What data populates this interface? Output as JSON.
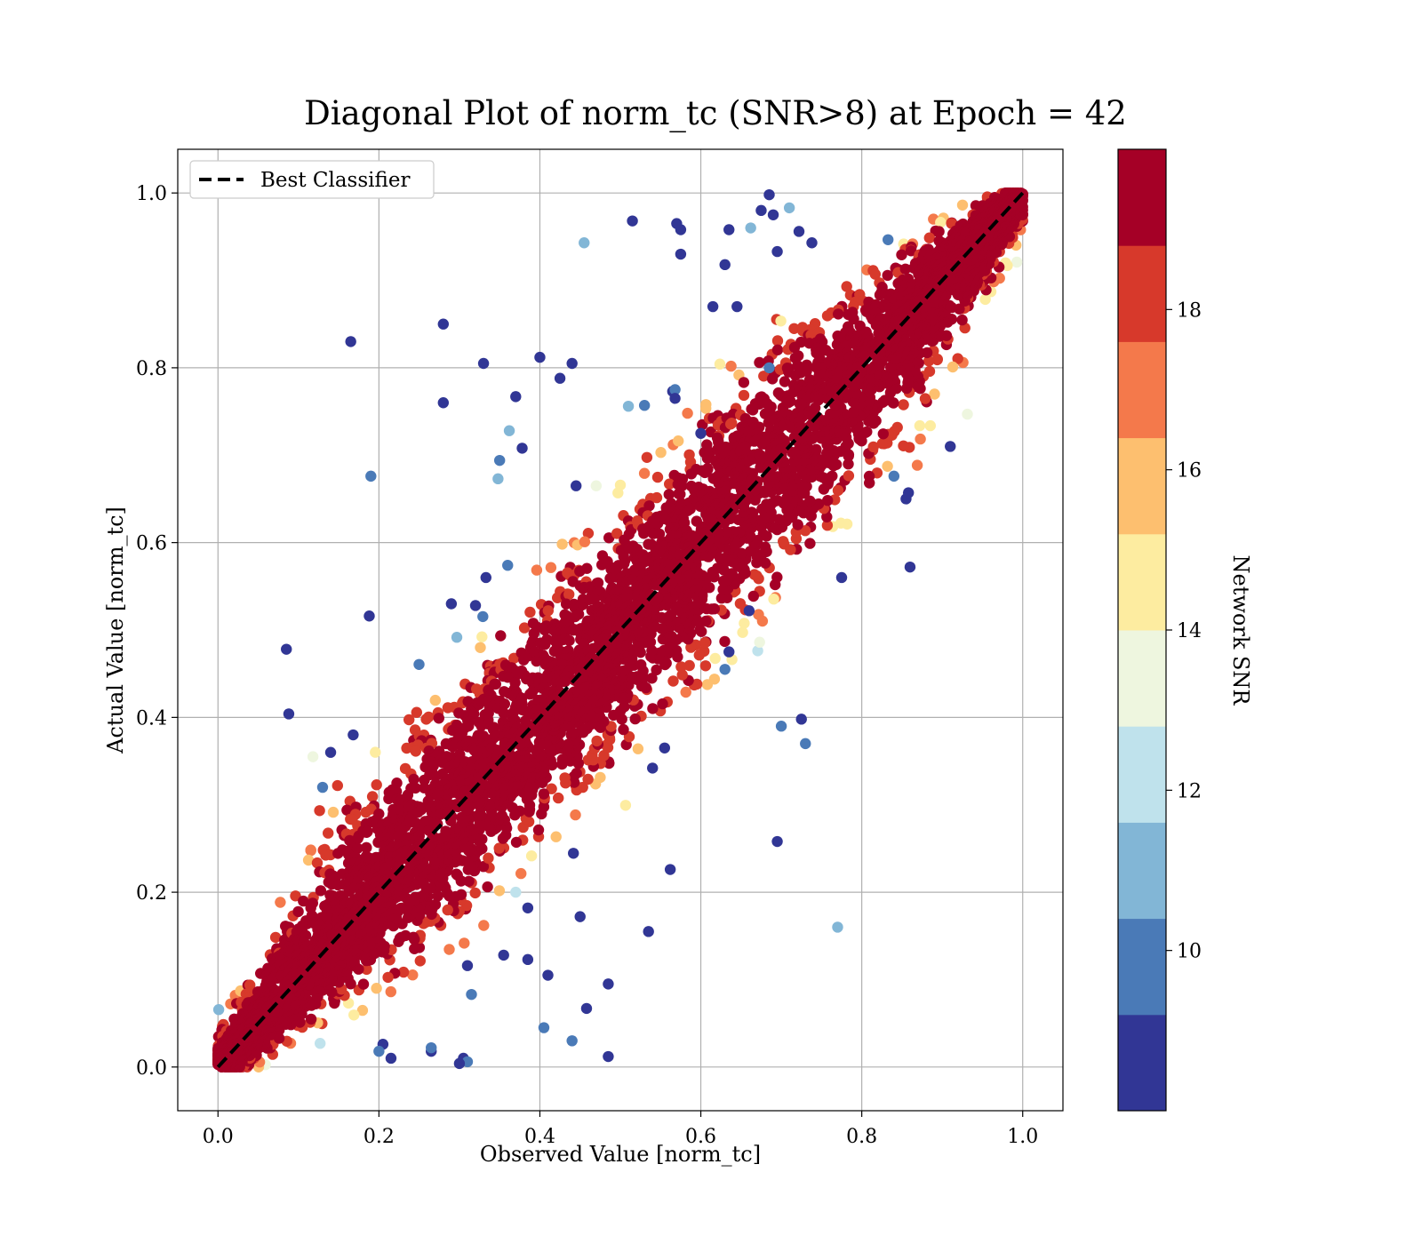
{
  "chart_data": {
    "type": "scatter",
    "title": "Diagonal Plot of norm_tc (SNR>8) at Epoch = 42",
    "xlabel": "Observed Value [norm_tc]",
    "ylabel": "Actual Value [norm_tc]",
    "xlim": [
      -0.05,
      1.05
    ],
    "ylim": [
      -0.05,
      1.05
    ],
    "xticks": [
      "0.0",
      "0.2",
      "0.4",
      "0.6",
      "0.8",
      "1.0"
    ],
    "yticks": [
      "0.0",
      "0.2",
      "0.4",
      "0.6",
      "0.8",
      "1.0"
    ],
    "grid": true,
    "legend": {
      "placement": "top-left",
      "entries": [
        {
          "label": "Best Classifier",
          "style": "dashed",
          "color": "#000000"
        }
      ]
    },
    "reference_line": {
      "label": "Best Classifier",
      "x": [
        0.0,
        1.0
      ],
      "y": [
        0.0,
        1.0
      ]
    },
    "colorbar": {
      "label": "Network SNR",
      "range": [
        8,
        20
      ],
      "ticks": [
        "10",
        "12",
        "14",
        "16",
        "18"
      ],
      "tick_values": [
        10,
        12,
        14,
        16,
        18
      ],
      "bins": [
        {
          "from": 8.0,
          "to": 9.2,
          "color": "#313695"
        },
        {
          "from": 9.2,
          "to": 10.4,
          "color": "#4a7ab7"
        },
        {
          "from": 10.4,
          "to": 11.6,
          "color": "#82b6d6"
        },
        {
          "from": 11.6,
          "to": 12.8,
          "color": "#bfe2ec"
        },
        {
          "from": 12.8,
          "to": 14.0,
          "color": "#eef6df"
        },
        {
          "from": 14.0,
          "to": 15.2,
          "color": "#fdeca0"
        },
        {
          "from": 15.2,
          "to": 16.4,
          "color": "#fdbf6f"
        },
        {
          "from": 16.4,
          "to": 17.6,
          "color": "#f4794b"
        },
        {
          "from": 17.6,
          "to": 18.8,
          "color": "#d7392b"
        },
        {
          "from": 18.8,
          "to": 20.0,
          "color": "#a50026"
        }
      ]
    },
    "outliers": [
      {
        "x": 0.165,
        "y": 0.83,
        "snr": 8.5
      },
      {
        "x": 0.28,
        "y": 0.85,
        "snr": 8.6
      },
      {
        "x": 0.28,
        "y": 0.76,
        "snr": 8.5
      },
      {
        "x": 0.33,
        "y": 0.805,
        "snr": 8.7
      },
      {
        "x": 0.4,
        "y": 0.812,
        "snr": 8.5
      },
      {
        "x": 0.44,
        "y": 0.805,
        "snr": 8.6
      },
      {
        "x": 0.425,
        "y": 0.788,
        "snr": 8.5
      },
      {
        "x": 0.37,
        "y": 0.767,
        "snr": 8.6
      },
      {
        "x": 0.515,
        "y": 0.968,
        "snr": 8.5
      },
      {
        "x": 0.57,
        "y": 0.965,
        "snr": 8.6
      },
      {
        "x": 0.575,
        "y": 0.958,
        "snr": 8.5
      },
      {
        "x": 0.575,
        "y": 0.93,
        "snr": 8.7
      },
      {
        "x": 0.455,
        "y": 0.943,
        "snr": 10.8
      },
      {
        "x": 0.19,
        "y": 0.676,
        "snr": 10.2
      },
      {
        "x": 0.085,
        "y": 0.478,
        "snr": 8.5
      },
      {
        "x": 0.088,
        "y": 0.404,
        "snr": 8.6
      },
      {
        "x": 0.188,
        "y": 0.516,
        "snr": 8.5
      },
      {
        "x": 0.35,
        "y": 0.694,
        "snr": 9.8
      },
      {
        "x": 0.348,
        "y": 0.673,
        "snr": 10.9
      },
      {
        "x": 0.378,
        "y": 0.708,
        "snr": 8.6
      },
      {
        "x": 0.362,
        "y": 0.728,
        "snr": 11.0
      },
      {
        "x": 0.685,
        "y": 0.998,
        "snr": 8.5
      },
      {
        "x": 0.71,
        "y": 0.983,
        "snr": 11.2
      },
      {
        "x": 0.675,
        "y": 0.98,
        "snr": 8.6
      },
      {
        "x": 0.69,
        "y": 0.975,
        "snr": 8.5
      },
      {
        "x": 0.635,
        "y": 0.958,
        "snr": 8.6
      },
      {
        "x": 0.662,
        "y": 0.96,
        "snr": 10.9
      },
      {
        "x": 0.63,
        "y": 0.918,
        "snr": 8.5
      },
      {
        "x": 0.695,
        "y": 0.933,
        "snr": 8.6
      },
      {
        "x": 0.722,
        "y": 0.956,
        "snr": 8.5
      },
      {
        "x": 0.738,
        "y": 0.943,
        "snr": 8.6
      },
      {
        "x": 0.645,
        "y": 0.87,
        "snr": 8.5
      },
      {
        "x": 0.615,
        "y": 0.87,
        "snr": 8.6
      },
      {
        "x": 0.685,
        "y": 0.8,
        "snr": 9.5
      },
      {
        "x": 0.91,
        "y": 0.71,
        "snr": 8.6
      },
      {
        "x": 0.86,
        "y": 0.572,
        "snr": 8.5
      },
      {
        "x": 0.775,
        "y": 0.56,
        "snr": 8.6
      },
      {
        "x": 0.855,
        "y": 0.65,
        "snr": 8.5
      },
      {
        "x": 0.858,
        "y": 0.657,
        "snr": 8.6
      },
      {
        "x": 0.84,
        "y": 0.676,
        "snr": 9.9
      },
      {
        "x": 0.695,
        "y": 0.258,
        "snr": 8.6
      },
      {
        "x": 0.7,
        "y": 0.39,
        "snr": 9.5
      },
      {
        "x": 0.725,
        "y": 0.398,
        "snr": 8.6
      },
      {
        "x": 0.73,
        "y": 0.37,
        "snr": 9.9
      },
      {
        "x": 0.77,
        "y": 0.16,
        "snr": 10.9
      },
      {
        "x": 0.635,
        "y": 0.475,
        "snr": 8.5
      },
      {
        "x": 0.63,
        "y": 0.455,
        "snr": 9.8
      },
      {
        "x": 0.66,
        "y": 0.522,
        "snr": 8.6
      },
      {
        "x": 0.555,
        "y": 0.365,
        "snr": 8.5
      },
      {
        "x": 0.54,
        "y": 0.342,
        "snr": 8.6
      },
      {
        "x": 0.562,
        "y": 0.226,
        "snr": 8.5
      },
      {
        "x": 0.535,
        "y": 0.155,
        "snr": 8.6
      },
      {
        "x": 0.485,
        "y": 0.095,
        "snr": 8.5
      },
      {
        "x": 0.458,
        "y": 0.067,
        "snr": 8.6
      },
      {
        "x": 0.44,
        "y": 0.03,
        "snr": 9.7
      },
      {
        "x": 0.405,
        "y": 0.045,
        "snr": 9.9
      },
      {
        "x": 0.485,
        "y": 0.012,
        "snr": 8.5
      },
      {
        "x": 0.305,
        "y": 0.01,
        "snr": 8.6
      },
      {
        "x": 0.31,
        "y": 0.006,
        "snr": 9.7
      },
      {
        "x": 0.3,
        "y": 0.004,
        "snr": 8.5
      },
      {
        "x": 0.265,
        "y": 0.018,
        "snr": 8.6
      },
      {
        "x": 0.265,
        "y": 0.022,
        "snr": 9.8
      },
      {
        "x": 0.215,
        "y": 0.01,
        "snr": 8.5
      },
      {
        "x": 0.205,
        "y": 0.026,
        "snr": 8.6
      },
      {
        "x": 0.2,
        "y": 0.018,
        "snr": 9.8
      },
      {
        "x": 0.41,
        "y": 0.105,
        "snr": 8.5
      },
      {
        "x": 0.385,
        "y": 0.123,
        "snr": 8.6
      },
      {
        "x": 0.355,
        "y": 0.128,
        "snr": 8.5
      },
      {
        "x": 0.315,
        "y": 0.083,
        "snr": 9.8
      },
      {
        "x": 0.31,
        "y": 0.116,
        "snr": 8.6
      },
      {
        "x": 0.45,
        "y": 0.172,
        "snr": 8.5
      },
      {
        "x": 0.385,
        "y": 0.182,
        "snr": 8.6
      },
      {
        "x": 0.37,
        "y": 0.2,
        "snr": 12.3
      },
      {
        "x": 0.118,
        "y": 0.355,
        "snr": 13.3
      },
      {
        "x": 0.14,
        "y": 0.36,
        "snr": 8.6
      },
      {
        "x": 0.168,
        "y": 0.38,
        "snr": 8.5
      },
      {
        "x": 0.13,
        "y": 0.32,
        "snr": 9.8
      },
      {
        "x": 0.333,
        "y": 0.56,
        "snr": 8.6
      },
      {
        "x": 0.36,
        "y": 0.574,
        "snr": 10.0
      },
      {
        "x": 0.29,
        "y": 0.53,
        "snr": 8.5
      },
      {
        "x": 0.32,
        "y": 0.528,
        "snr": 8.6
      },
      {
        "x": 0.53,
        "y": 0.757,
        "snr": 10.1
      },
      {
        "x": 0.51,
        "y": 0.756,
        "snr": 10.8
      },
      {
        "x": 0.565,
        "y": 0.773,
        "snr": 8.6
      },
      {
        "x": 0.568,
        "y": 0.775,
        "snr": 9.9
      },
      {
        "x": 0.568,
        "y": 0.765,
        "snr": 8.5
      },
      {
        "x": 0.445,
        "y": 0.665,
        "snr": 8.6
      },
      {
        "x": 0.47,
        "y": 0.665,
        "snr": 13.2
      },
      {
        "x": 0.6,
        "y": 0.725,
        "snr": 8.5
      }
    ]
  }
}
